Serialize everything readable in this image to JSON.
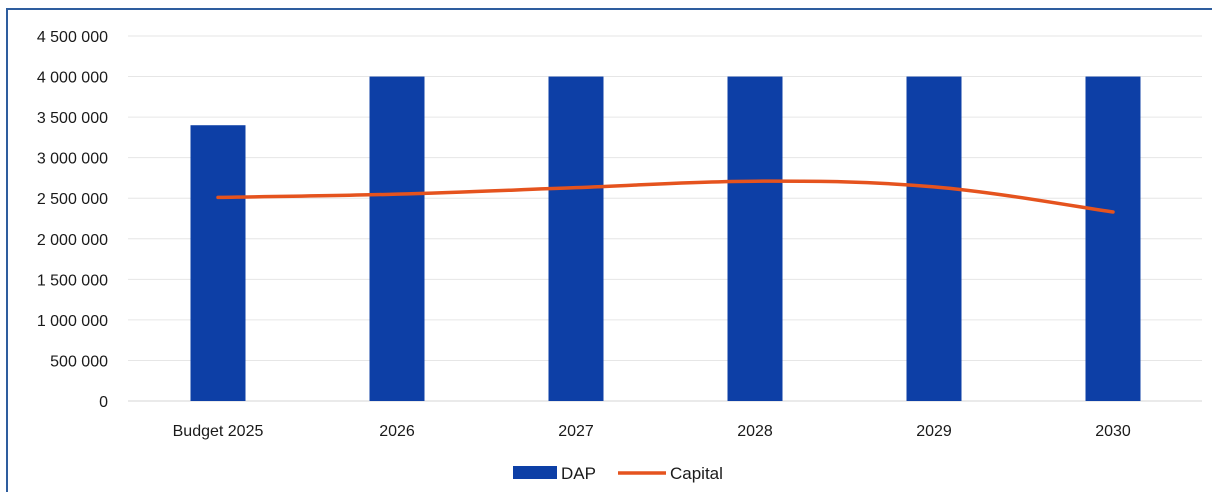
{
  "chart_data": {
    "type": "bar",
    "categories": [
      "Budget 2025",
      "2026",
      "2027",
      "2028",
      "2029",
      "2030"
    ],
    "series": [
      {
        "name": "DAP",
        "kind": "bar",
        "color": "#0d3fa6",
        "values": [
          3400000,
          4000000,
          4000000,
          4000000,
          4000000,
          4000000
        ]
      },
      {
        "name": "Capital",
        "kind": "line",
        "color": "#e5531e",
        "values": [
          2510000,
          2550000,
          2630000,
          2710000,
          2640000,
          2330000
        ]
      }
    ],
    "ylim": [
      0,
      4500000
    ],
    "yticks": [
      0,
      500000,
      1000000,
      1500000,
      2000000,
      2500000,
      3000000,
      3500000,
      4000000,
      4500000
    ],
    "ytick_labels": [
      "0",
      "500 000",
      "1 000 000",
      "1 500 000",
      "2 000 000",
      "2 500 000",
      "3 000 000",
      "3 500 000",
      "4 000 000",
      "4 500 000"
    ],
    "grid": true,
    "legend_position": "bottom-center",
    "title": "",
    "xlabel": "",
    "ylabel": ""
  }
}
